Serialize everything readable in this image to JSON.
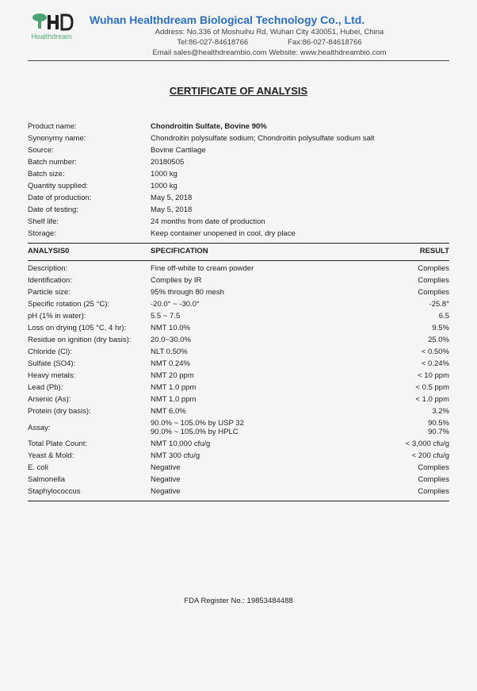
{
  "header": {
    "logo_sub": "Healthdream",
    "company": "Wuhan Healthdream Biological Technology Co., Ltd.",
    "address": "Address:  No.336 of Moshuihu Rd, Wuhan City 430051, Hubei, China",
    "tel": "Tel:86-027-84618766",
    "fax": "Fax:86-027-84618766",
    "contact": "Email sales@healthdreambio.com    Website:  www.healthdreambio.com"
  },
  "title": "CERTIFICATE OF ANALYSIS",
  "info": [
    {
      "label": "Product name:",
      "value": "Chondroitin Sulfate, Bovine 90%",
      "bold": true
    },
    {
      "label": "Synonymy name:",
      "value": "Chondroitin polysulfate sodium; Chondroitin polysulfate sodium salt"
    },
    {
      "label": "Source:",
      "value": "Bovine Cartilage"
    },
    {
      "label": "Batch number:",
      "value": "20180505"
    },
    {
      "label": "Batch size:",
      "value": "1000 kg"
    },
    {
      "label": "Quantity supplied:",
      "value": "1000 kg"
    },
    {
      "label": "Date of production:",
      "value": "May 5, 2018"
    },
    {
      "label": "Date of testing:",
      "value": "May 5, 2018"
    },
    {
      "label": "Shelf life:",
      "value": "24 months from date of production"
    },
    {
      "label": "Storage:",
      "value": "Keep container unopened in cool, dry place"
    }
  ],
  "analysis_headers": {
    "c1": "ANALYSIS0",
    "c2": "SPECIFICATION",
    "c3": "RESULT"
  },
  "analysis": [
    {
      "c1": "Description:",
      "c2": "Fine off-white to cream powder",
      "c3": "Complies"
    },
    {
      "c1": "Identification:",
      "c2": "Complies by IR",
      "c3": "Complies"
    },
    {
      "c1": "Particle size:",
      "c2": "95% through 80 mesh",
      "c3": "Complies"
    },
    {
      "c1": "Specific rotation (25 °C):",
      "c2": "-20.0° ~ -30.0°",
      "c3": "-25.8°"
    },
    {
      "c1": "pH (1% in water):",
      "c2": "5.5 ~ 7.5",
      "c3": "6.5"
    },
    {
      "c1": "Loss on drying (105 °C, 4 hr):",
      "c2": "NMT 10.0%",
      "c3": "9.5%"
    },
    {
      "c1": "Residue on ignition (dry basis):",
      "c2": "20.0~30.0%",
      "c3": "25.0%"
    },
    {
      "c1": "Chloride (Cl):",
      "c2": "NLT 0.50%",
      "c3": "< 0.50%"
    },
    {
      "c1": "Sulfate (SO4):",
      "c2": "NMT 0.24%",
      "c3": "< 0.24%"
    },
    {
      "c1": "Heavy metals:",
      "c2": "NMT 20 ppm",
      "c3": "< 10 ppm"
    },
    {
      "c1": "Lead (Pb):",
      "c2": "NMT 1.0 ppm",
      "c3": "< 0.5 ppm"
    },
    {
      "c1": "Arsenic (As):",
      "c2": "NMT 1.0 ppm",
      "c3": "< 1.0 ppm"
    },
    {
      "c1": "Protein (dry basis):",
      "c2": "NMT 6.0%",
      "c3": "3.2%"
    },
    {
      "c1": "Assay:",
      "c2": "90.0% ~ 105.0% by USP 32\n90.0% ~ 105.0% by HPLC",
      "c3": "90.5%\n90.7%"
    },
    {
      "c1": "Total Plate Count:",
      "c2": "NMT 10,000 cfu/g",
      "c3": "< 3,000 cfu/g"
    },
    {
      "c1": "Yeast & Mold:",
      "c2": "NMT 300 cfu/g",
      "c3": "< 200 cfu/g"
    },
    {
      "c1": "E. coli",
      "c2": "Negative",
      "c3": "Complies"
    },
    {
      "c1": "Salmonella",
      "c2": "Negative",
      "c3": "Complies"
    },
    {
      "c1": "Staphylococcus",
      "c2": "Negative",
      "c3": "Complies"
    }
  ],
  "footer": "FDA   Register No.: 19853484488"
}
